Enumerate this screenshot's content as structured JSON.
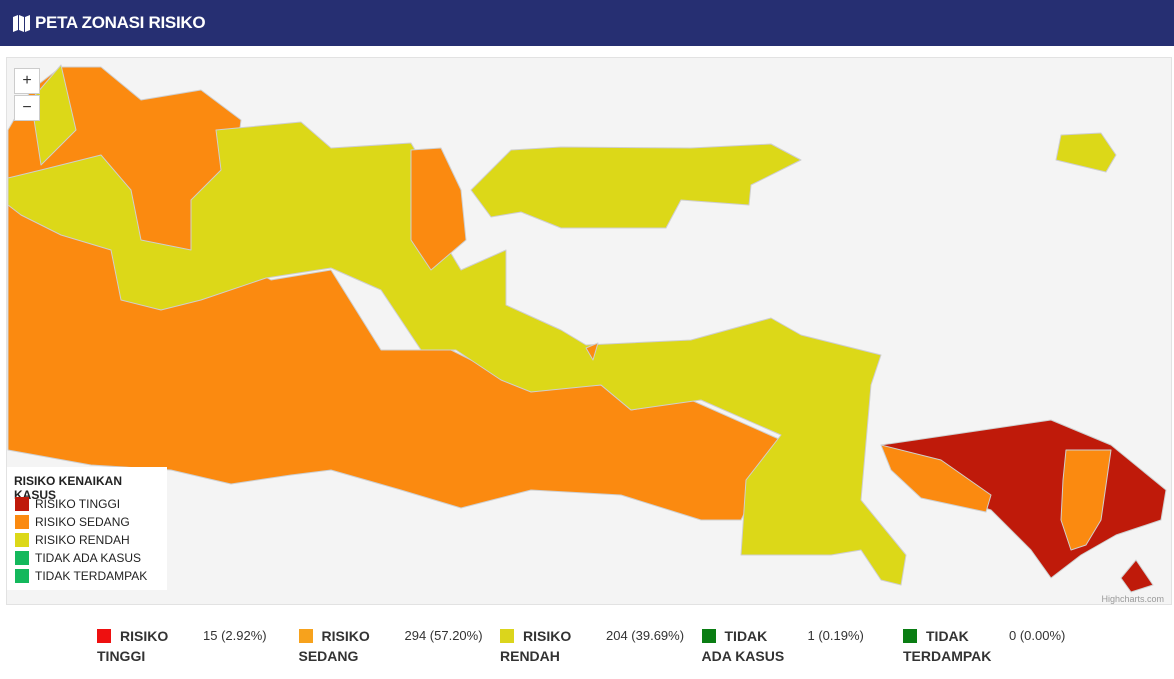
{
  "header": {
    "title": "PETA ZONASI RISIKO"
  },
  "zoom": {
    "in": "+",
    "out": "−"
  },
  "legend": {
    "title": "RISIKO KENAIKAN KASUS",
    "items": [
      {
        "label": "RISIKO TINGGI",
        "color": "#bf1a0a"
      },
      {
        "label": "RISIKO SEDANG",
        "color": "#fb8a10"
      },
      {
        "label": "RISIKO RENDAH",
        "color": "#dcd818"
      },
      {
        "label": "TIDAK ADA KASUS",
        "color": "#14b85c"
      },
      {
        "label": "TIDAK TERDAMPAK",
        "color": "#14b85c"
      }
    ]
  },
  "credits": "Highcharts.com",
  "summary": [
    {
      "name": "RISIKO TINGGI",
      "value": "15 (2.92%)",
      "color": "#ee1010"
    },
    {
      "name": "RISIKO SEDANG",
      "value": "294 (57.20%)",
      "color": "#f7a21c"
    },
    {
      "name": "RISIKO RENDAH",
      "value": "204 (39.69%)",
      "color": "#dbd51c"
    },
    {
      "name": "TIDAK ADA KASUS",
      "value": "1 (0.19%)",
      "color": "#0a7d13"
    },
    {
      "name": "TIDAK TERDAMPAK",
      "value": "0 (0.00%)",
      "color": "#0a7d13"
    }
  ]
}
